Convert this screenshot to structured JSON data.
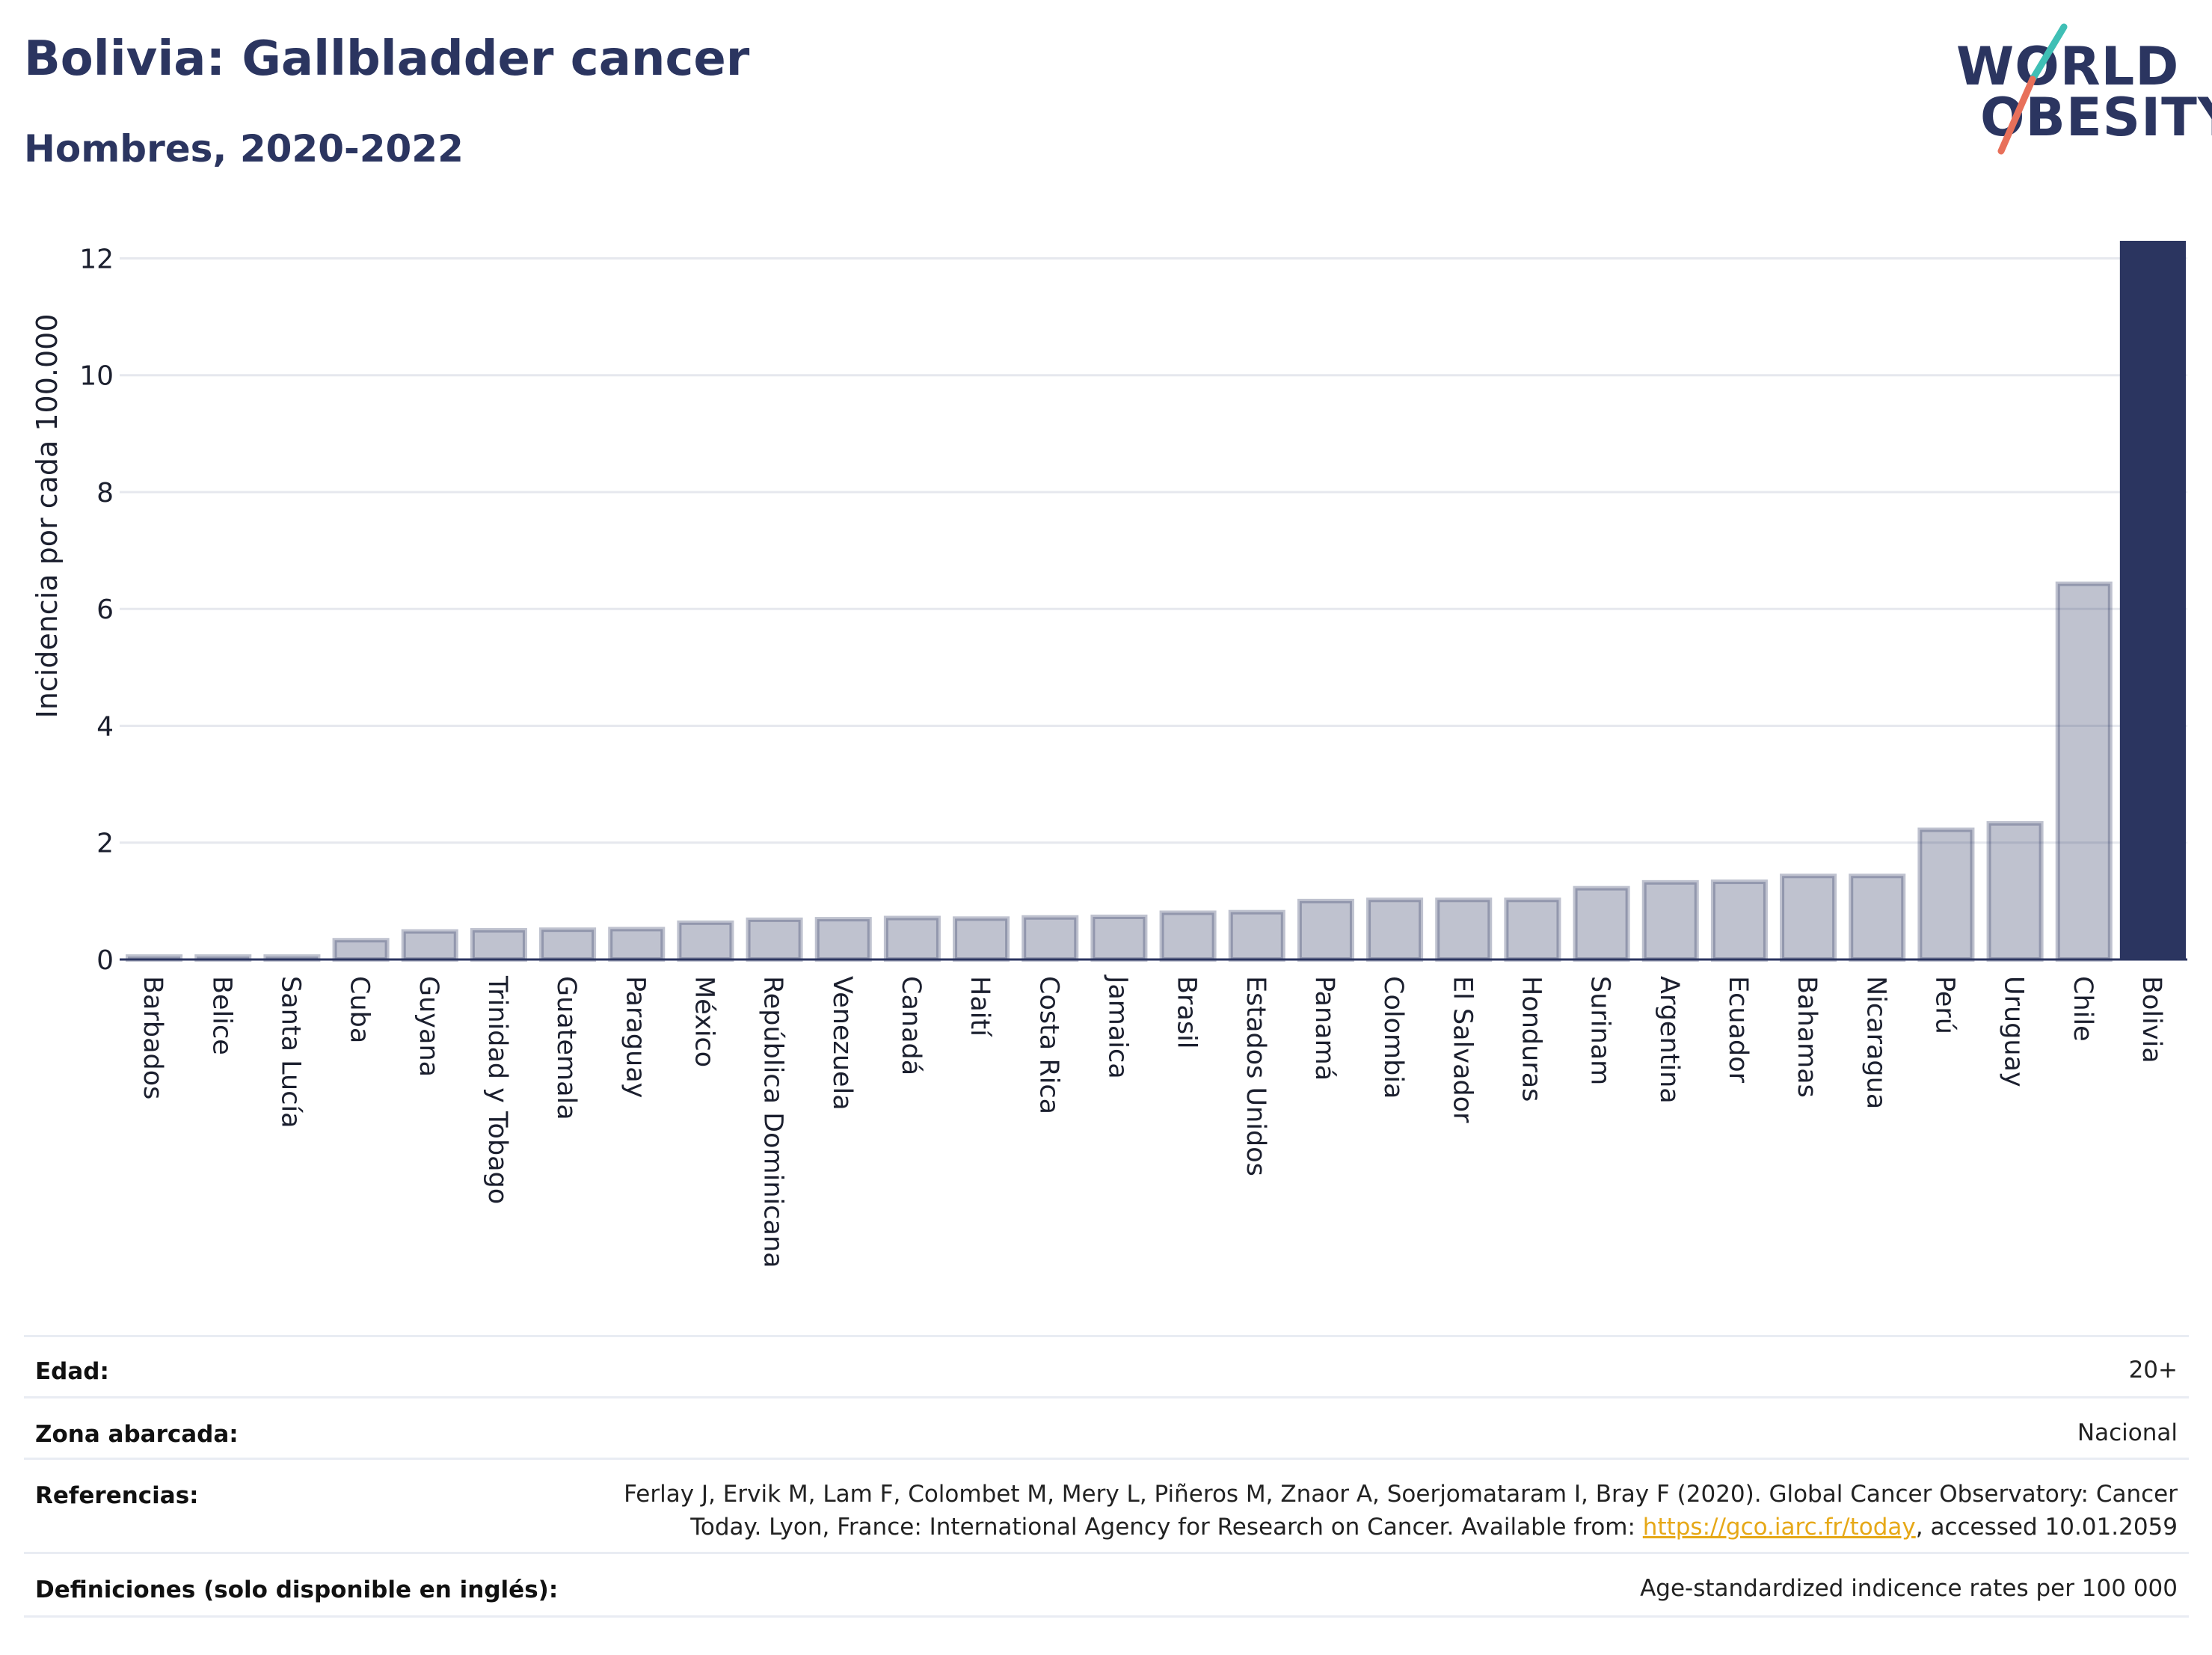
{
  "header": {
    "title": "Bolivia: Gallbladder cancer",
    "subtitle": "Hombres, 2020-2022"
  },
  "logo": {
    "line1": "WORLD",
    "line2": "OBESITY",
    "slash_colors": [
      "#3fbfb5",
      "#e8705a"
    ]
  },
  "chart_data": {
    "type": "bar",
    "ylabel": "Incidencia por cada 100.000",
    "ylim": [
      0,
      12.3
    ],
    "yticks": [
      0,
      2,
      4,
      6,
      8,
      10,
      12
    ],
    "grid": true,
    "categories": [
      "Barbados",
      "Belice",
      "Santa Lucía",
      "Cuba",
      "Guyana",
      "Trinidad y Tobago",
      "Guatemala",
      "Paraguay",
      "México",
      "República Dominicana",
      "Venezuela",
      "Canadá",
      "Haití",
      "Costa Rica",
      "Jamaica",
      "Brasil",
      "Estados Unidos",
      "Panamá",
      "Colombia",
      "El Salvador",
      "Honduras",
      "Surinam",
      "Argentina",
      "Ecuador",
      "Bahamas",
      "Nicaragua",
      "Perú",
      "Uruguay",
      "Chile",
      "Bolivia"
    ],
    "values": [
      0.05,
      0.05,
      0.05,
      0.33,
      0.48,
      0.5,
      0.51,
      0.52,
      0.63,
      0.68,
      0.69,
      0.71,
      0.7,
      0.72,
      0.73,
      0.8,
      0.81,
      1.0,
      1.02,
      1.02,
      1.02,
      1.22,
      1.32,
      1.33,
      1.43,
      1.43,
      2.22,
      2.33,
      6.43,
      12.3
    ],
    "highlight": "Bolivia",
    "colors": {
      "default": "#2b3560",
      "highlight": "#2b3560"
    }
  },
  "details": [
    {
      "label": "Edad:",
      "value": "20+"
    },
    {
      "label": "Zona abarcada:",
      "value": "Nacional"
    },
    {
      "label": "Referencias:",
      "value_line1": "Ferlay J, Ervik M, Lam F, Colombet M, Mery L, Piñeros M, Znaor A, Soerjomataram I, Bray F (2020). Global Cancer Observatory: Cancer",
      "value_line2_pre": "Today. Lyon, France: International Agency for Research on Cancer. Available from: ",
      "link": "https://gco.iarc.fr/today",
      "value_line2_post": ", accessed 10.01.2059"
    },
    {
      "label": "Definiciones (solo disponible en inglés):",
      "value": "Age-standardized indicence rates per 100 000"
    }
  ]
}
